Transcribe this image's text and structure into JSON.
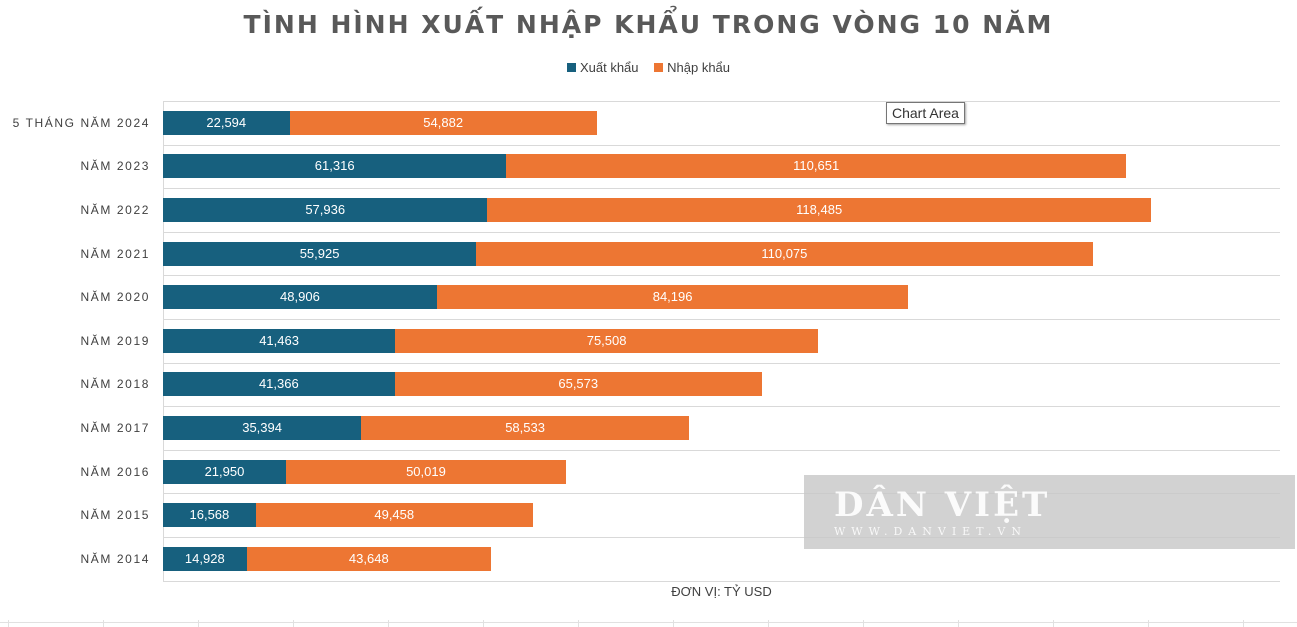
{
  "chart_data": {
    "type": "bar",
    "orientation": "horizontal",
    "stacked": true,
    "title": "TÌNH HÌNH XUẤT NHẬP KHẨU TRONG VÒNG 10 NĂM",
    "categories": [
      "5 THÁNG NĂM 2024",
      "NĂM 2023",
      "NĂM 2022",
      "NĂM 2021",
      "NĂM 2020",
      "NĂM 2019",
      "NĂM 2018",
      "NĂM 2017",
      "NĂM 2016",
      "NĂM 2015",
      "NĂM 2014"
    ],
    "series": [
      {
        "name": "Xuất khẩu",
        "color": "#17607E",
        "values": [
          22.594,
          61.316,
          57.936,
          55.925,
          48.906,
          41.463,
          41.366,
          35.394,
          21.95,
          16.568,
          14.928
        ]
      },
      {
        "name": "Nhập khẩu",
        "color": "#ED7633",
        "values": [
          54.882,
          110.651,
          118.485,
          110.075,
          84.196,
          75.508,
          65.573,
          58.533,
          50.019,
          49.458,
          43.648
        ]
      }
    ],
    "data_labels": {
      "Xuất khẩu": [
        "22,594",
        "61,316",
        "57,936",
        "55,925",
        "48,906",
        "41,463",
        "41,366",
        "35,394",
        "21,950",
        "16,568",
        "14,928"
      ],
      "Nhập khẩu": [
        "54,882",
        "110,651",
        "118,485",
        "110,075",
        "84,196",
        "75,508",
        "65,573",
        "58,533",
        "50,019",
        "49,458",
        "43,648"
      ]
    },
    "xlabel": "ĐƠN VỊ: TỶ USD",
    "ylabel": "",
    "xlim": [
      0,
      200
    ],
    "grid": true,
    "legend_position": "top"
  },
  "tooltip": "Chart Area",
  "watermark": {
    "text": "DÂN VIỆT",
    "sub": "WWW.DANVIET.VN"
  }
}
